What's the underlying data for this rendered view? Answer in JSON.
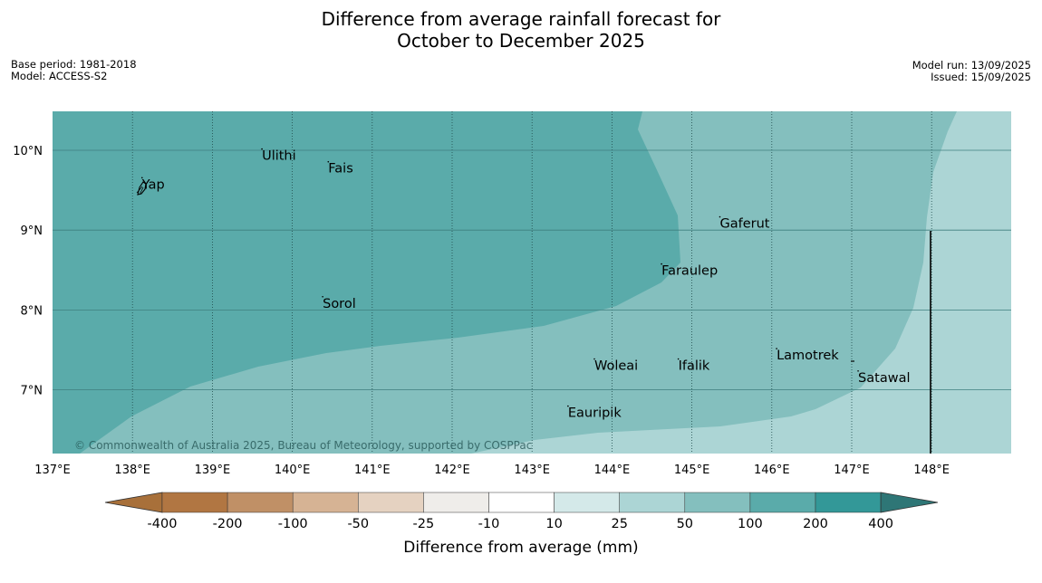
{
  "title": {
    "line1": "Difference from average rainfall forecast for",
    "line2": "October to December 2025"
  },
  "meta_left": {
    "base_period": "Base period: 1981-2018",
    "model": "Model: ACCESS-S2"
  },
  "meta_right": {
    "model_run": "Model run: 13/09/2025",
    "issued": "Issued: 15/09/2025"
  },
  "map": {
    "lon_range": [
      137,
      149
    ],
    "lat_range": [
      6.2,
      10.5
    ],
    "lon_ticks": [
      "137°E",
      "138°E",
      "139°E",
      "140°E",
      "141°E",
      "142°E",
      "143°E",
      "144°E",
      "145°E",
      "146°E",
      "147°E",
      "148°E"
    ],
    "lat_ticks": [
      "10°N",
      "9°N",
      "8°N",
      "7°N"
    ],
    "places": [
      {
        "name": "Yap",
        "lon": 138.12,
        "lat": 9.52
      },
      {
        "name": "Ulithi",
        "lon": 139.62,
        "lat": 9.88
      },
      {
        "name": "Fais",
        "lon": 140.45,
        "lat": 9.72
      },
      {
        "name": "Sorol",
        "lon": 140.38,
        "lat": 8.03
      },
      {
        "name": "Gaferut",
        "lon": 145.35,
        "lat": 9.03
      },
      {
        "name": "Faraulep",
        "lon": 144.62,
        "lat": 8.44
      },
      {
        "name": "Woleai",
        "lon": 143.78,
        "lat": 7.25
      },
      {
        "name": "Ifalik",
        "lon": 144.83,
        "lat": 7.25
      },
      {
        "name": "Lamotrek",
        "lon": 146.06,
        "lat": 7.38
      },
      {
        "name": "Satawal",
        "lon": 147.08,
        "lat": 7.1
      },
      {
        "name": "Eauripik",
        "lon": 143.45,
        "lat": 6.66
      }
    ],
    "copyright": "© Commonwealth of Australia 2025, Bureau of Meteorology, supported by COSPPac",
    "region_colors": {
      "band_200_400": "#5aabaa",
      "band_100_200": "#84bfbe",
      "band_50_100": "#acd5d5"
    }
  },
  "colorbar": {
    "title": "Difference from average (mm)",
    "labels": [
      "-400",
      "-200",
      "-100",
      "-50",
      "-25",
      "-10",
      "10",
      "25",
      "50",
      "100",
      "200",
      "400"
    ],
    "colors": [
      "#a8703a",
      "#b17642",
      "#c09066",
      "#d6b394",
      "#e5d2c1",
      "#efedea",
      "#ffffff",
      "#d4e9e9",
      "#acd5d5",
      "#84bfbe",
      "#5aabaa",
      "#339898",
      "#2e7676"
    ]
  }
}
